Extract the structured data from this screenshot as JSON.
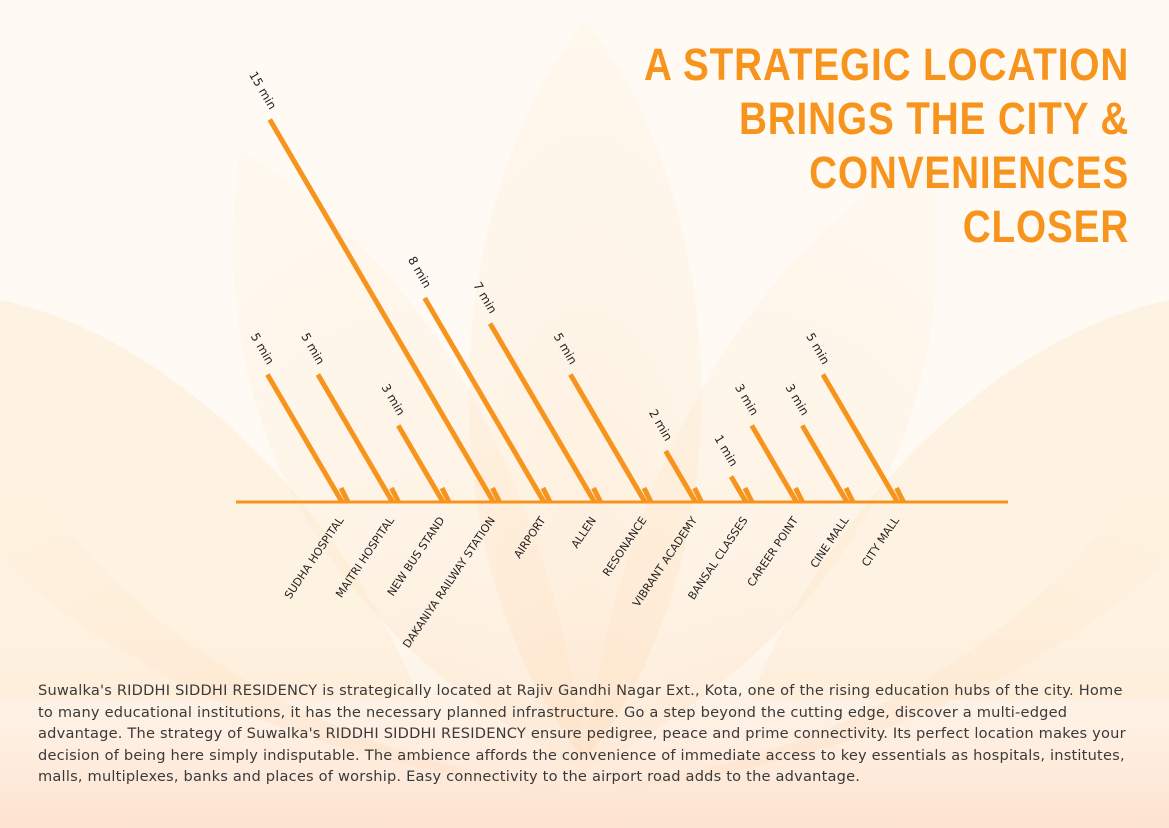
{
  "title_lines": [
    "A STRATEGIC LOCATION",
    "BRINGS THE CITY &",
    "CONVENIENCES",
    "CLOSER"
  ],
  "description": "Suwalka's RIDDHI SIDDHI RESIDENCY is strategically located at Rajiv Gandhi Nagar Ext., Kota, one of the rising education hubs of the city. Home to many educational institutions, it has the necessary planned infrastructure. Go a step beyond the cutting edge, discover a multi-edged advantage. The strategy of Suwalka's RIDDHI SIDDHI RESIDENCY ensure pedigree, peace and prime connectivity. Its perfect location makes your decision of being here simply indisputable. The ambience affords the convenience of immediate access to key essentials as hospitals, institutes, malls, multiplexes, banks and places of worship. Easy connectivity to the airport road adds to the advantage.",
  "colors": {
    "accent": "#f7941d",
    "text": "#3a3a3a",
    "background": "#fffaf3",
    "petal": "#fbd7a6"
  },
  "chart_data": {
    "type": "bar",
    "unit": "min",
    "categories": [
      "SUDHA HOSPITAL",
      "MAITRI HOSPITAL",
      "NEW BUS STAND",
      "DAKANIYA RAILWAY STATION",
      "AIRPORT",
      "ALLEN",
      "RESONANCE",
      "VIBRANT ACADEMY",
      "BANSAL CLASSES",
      "CAREER POINT",
      "CINE MALL",
      "CITY MALL"
    ],
    "values": [
      5,
      5,
      3,
      15,
      8,
      7,
      5,
      2,
      1,
      3,
      3,
      5
    ],
    "labels": [
      "5 min",
      "5 min",
      "3 min",
      "15 min",
      "8 min",
      "7 min",
      "5 min",
      "2 min",
      "1 min",
      "3 min",
      "3 min",
      "5 min"
    ],
    "title": "",
    "xlabel": "",
    "ylabel": "",
    "ylim": [
      0,
      15
    ]
  }
}
